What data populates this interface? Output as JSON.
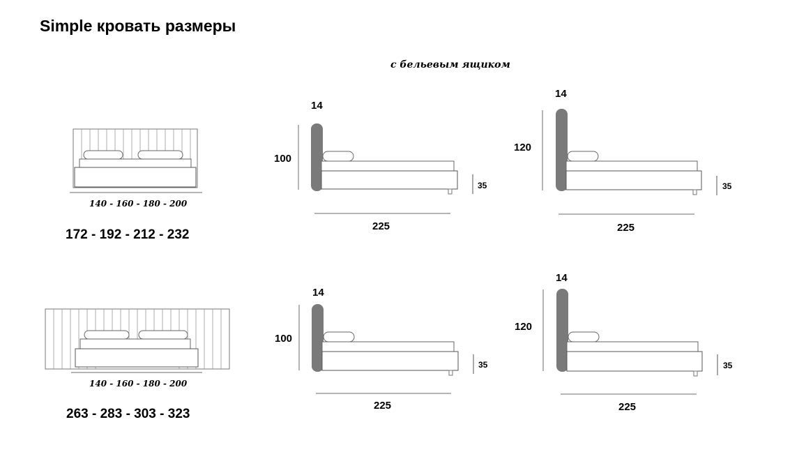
{
  "title": "Simple кровать размеры",
  "subtitle": "с бельевым ящиком",
  "rows": [
    {
      "front": {
        "widths": "140 - 160 - 180 - 200",
        "overall": "172 - 192 - 212 - 232"
      },
      "sides": [
        {
          "headboard_thickness": "14",
          "height": "100",
          "frame_height": "35",
          "length": "225"
        },
        {
          "headboard_thickness": "14",
          "height": "120",
          "frame_height": "35",
          "length": "225"
        }
      ]
    },
    {
      "front": {
        "widths": "140 - 160 - 180 - 200",
        "overall": "263 - 283 - 303 - 323"
      },
      "sides": [
        {
          "headboard_thickness": "14",
          "height": "100",
          "frame_height": "35",
          "length": "225"
        },
        {
          "headboard_thickness": "14",
          "height": "120",
          "frame_height": "35",
          "length": "225"
        }
      ]
    }
  ],
  "colors": {
    "headboard": "#7a7a7a",
    "line": "#555555",
    "dim_line": "#b5b5b5"
  }
}
